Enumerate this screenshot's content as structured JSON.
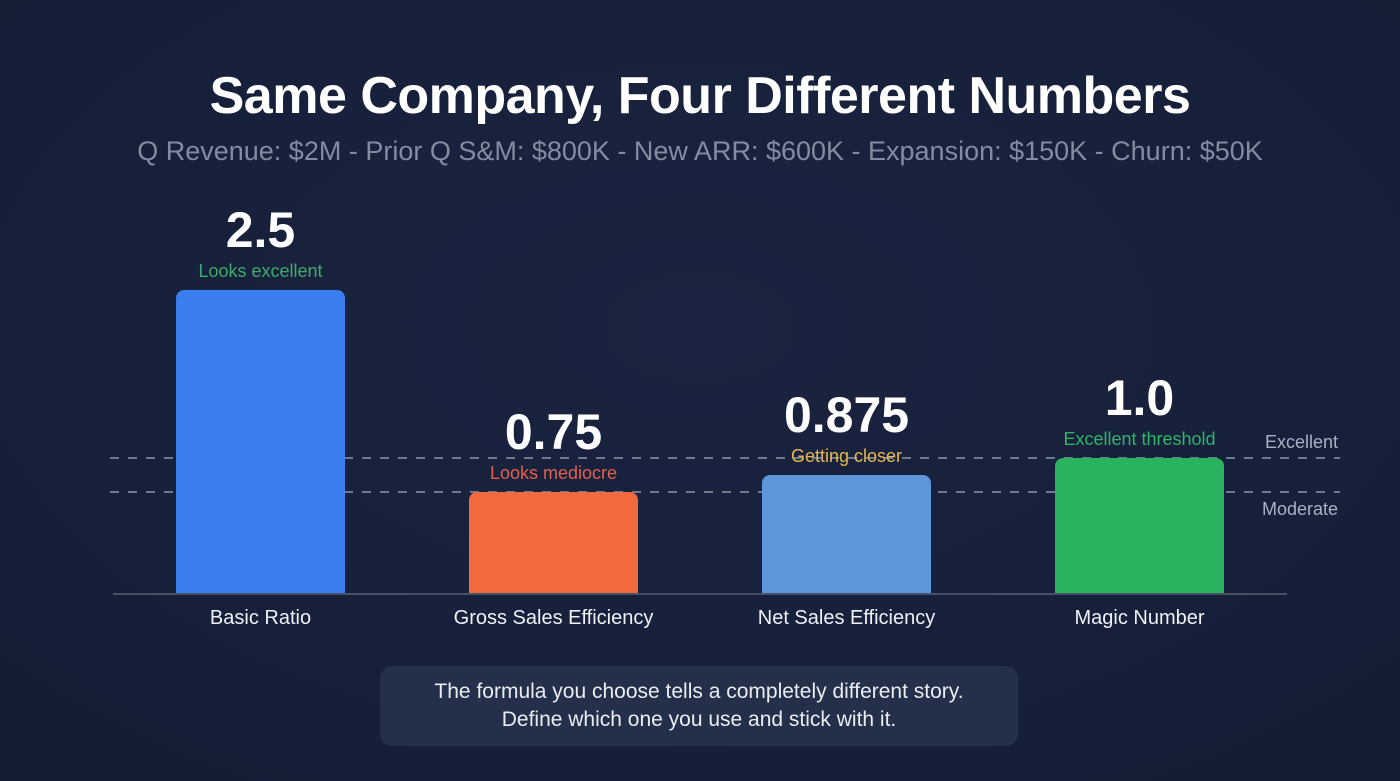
{
  "title": "Same Company, Four Different Numbers",
  "subtitle": "Q Revenue: $2M - Prior Q S&M: $800K - New ARR: $600K - Expansion: $150K - Churn: $50K",
  "caption": {
    "line1": "The formula you choose tells a completely different story.",
    "line2": "Define which one you use and stick with it."
  },
  "colors": {
    "background": "#16203a",
    "title_text": "#ffffff",
    "subtitle_text": "#828ca0",
    "axis": "#485064",
    "reference_line": "#6e7a8e",
    "reference_label_text": "#a9b2c2",
    "category_label_text": "#eef1f5",
    "caption_box_background": "#242f49",
    "caption_text": "#e9edf2"
  },
  "chart_data": {
    "type": "bar",
    "title": "Same Company, Four Different Numbers",
    "subtitle": "Q Revenue: $2M - Prior Q S&M: $800K - New ARR: $600K - Expansion: $150K - Churn: $50K",
    "categories": [
      "Basic Ratio",
      "Gross Sales Efficiency",
      "Net Sales Efficiency",
      "Magic Number"
    ],
    "values": [
      2.5,
      0.75,
      0.875,
      1.0
    ],
    "ylim": [
      0,
      2.5
    ],
    "xlabel": "",
    "ylabel": "",
    "legend": "none",
    "grid": "two dashed horizontal reference lines",
    "bars": [
      {
        "category": "Basic Ratio",
        "value": 2.5,
        "display_value": "2.5",
        "annotation": "Looks excellent",
        "bar_color": "#3b7ef0",
        "annotation_color": "#3cab6b"
      },
      {
        "category": "Gross Sales Efficiency",
        "value": 0.75,
        "display_value": "0.75",
        "annotation": "Looks mediocre",
        "bar_color": "#f2693f",
        "annotation_color": "#e2604c"
      },
      {
        "category": "Net Sales Efficiency",
        "value": 0.875,
        "display_value": "0.875",
        "annotation": "Getting closer",
        "bar_color": "#5e96da",
        "annotation_color": "#e7b84d"
      },
      {
        "category": "Magic Number",
        "value": 1.0,
        "display_value": "1.0",
        "annotation": "Excellent threshold",
        "bar_color": "#2bb25e",
        "annotation_color": "#2eb567"
      }
    ],
    "reference_lines": [
      {
        "label": "Excellent",
        "value": 1.0
      },
      {
        "label": "Moderate",
        "value": 0.75
      }
    ]
  }
}
